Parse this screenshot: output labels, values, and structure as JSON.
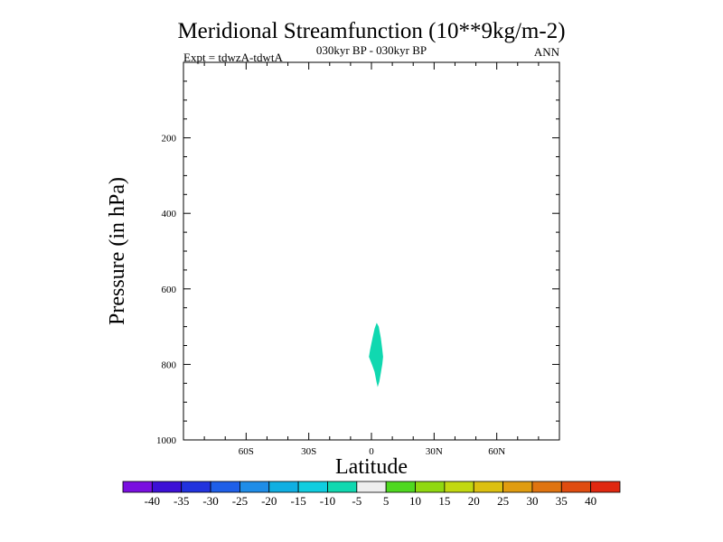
{
  "chart_data": {
    "type": "contour",
    "title": "Meridional Streamfunction (10**9kg/m-2)",
    "subtitle": "030kyr BP - 030kyr BP",
    "left_label": "Expt = tdwzA-tdwtA",
    "right_label": "ANN",
    "xlabel": "Latitude",
    "ylabel": "Pressure (in hPa)",
    "xlim": [
      -90,
      90
    ],
    "ylim": [
      0,
      1000
    ],
    "y_inverted": true,
    "x_ticks": [
      {
        "value": -60,
        "label": "60S"
      },
      {
        "value": -30,
        "label": "30S"
      },
      {
        "value": 0,
        "label": "0"
      },
      {
        "value": 30,
        "label": "30N"
      },
      {
        "value": 60,
        "label": "60N"
      }
    ],
    "y_ticks": [
      {
        "value": 200,
        "label": "200"
      },
      {
        "value": 400,
        "label": "400"
      },
      {
        "value": 600,
        "label": "600"
      },
      {
        "value": 800,
        "label": "800"
      },
      {
        "value": 1000,
        "label": "1000"
      }
    ],
    "filled_regions": [
      {
        "level_range": [
          -10,
          -5
        ],
        "color": "#10d8b0",
        "outline": [
          [
            2.5,
            690
          ],
          [
            3.5,
            700
          ],
          [
            4.5,
            730
          ],
          [
            5.2,
            760
          ],
          [
            5.6,
            780
          ],
          [
            5.2,
            800
          ],
          [
            4.6,
            820
          ],
          [
            3.8,
            845
          ],
          [
            3.0,
            860
          ],
          [
            2.4,
            845
          ],
          [
            1.5,
            820
          ],
          [
            0.2,
            800
          ],
          [
            -1.2,
            780
          ],
          [
            -0.6,
            760
          ],
          [
            0.5,
            730
          ],
          [
            1.5,
            705
          ]
        ]
      }
    ],
    "colorbar": {
      "labels": [
        "-40",
        "-35",
        "-30",
        "-25",
        "-20",
        "-15",
        "-10",
        "-5",
        "5",
        "10",
        "15",
        "20",
        "25",
        "30",
        "35",
        "40"
      ],
      "colors": [
        "#7a0fe0",
        "#3d10d6",
        "#2233de",
        "#1f5fe8",
        "#1f8de8",
        "#10afe2",
        "#10cde0",
        "#10d8b0",
        "#eeeeee",
        "#4fd820",
        "#90d810",
        "#c2d810",
        "#dcc010",
        "#e09c10",
        "#e07410",
        "#e04c10",
        "#e02810"
      ]
    }
  }
}
